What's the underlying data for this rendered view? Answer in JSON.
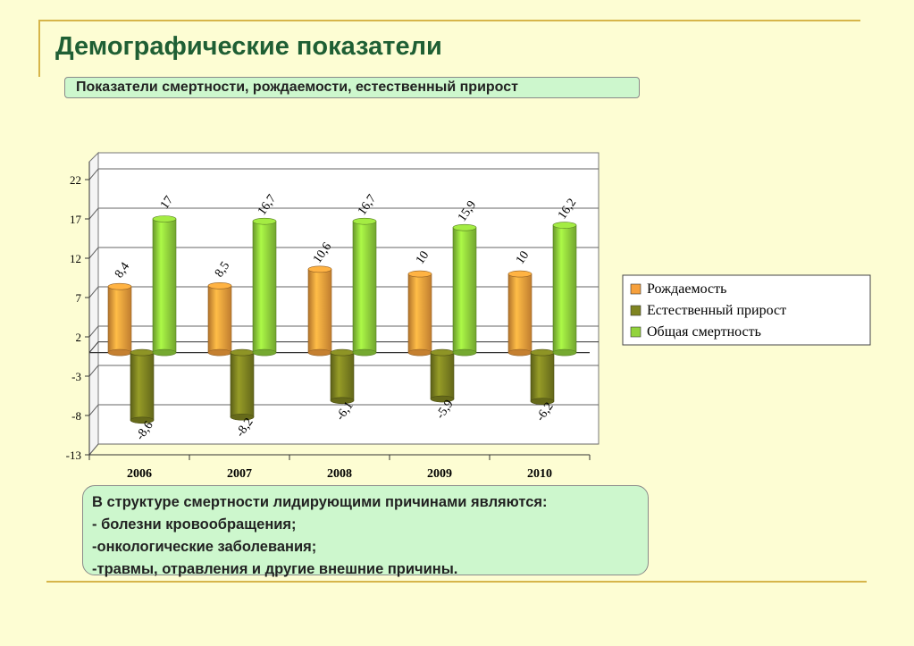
{
  "title": "Демографические показатели",
  "subtitle": "Показатели смертности, рождаемости, естественный прирост",
  "colors": {
    "background": "#fdfdd3",
    "title": "#1f5f34",
    "box": "#cdf7cd",
    "frame": "#d6b54a"
  },
  "chart_data": {
    "type": "bar",
    "categories": [
      "2006",
      "2007",
      "2008",
      "2009",
      "2010"
    ],
    "series": [
      {
        "name": "Рождаемость",
        "color": "#f6a03c",
        "values": [
          8.4,
          8.5,
          10.6,
          10,
          10
        ],
        "labels": [
          "8,4",
          "8,5",
          "10,6",
          "10",
          "10"
        ]
      },
      {
        "name": "Естественный прирост",
        "color": "#7f8421",
        "values": [
          -8.6,
          -8.2,
          -6.1,
          -5.9,
          -6.2
        ],
        "labels": [
          "-8,6",
          "-8,2",
          "-6,1",
          "-5,9",
          "-6,2"
        ]
      },
      {
        "name": "Общая смертность",
        "color": "#92d33c",
        "values": [
          17,
          16.7,
          16.7,
          15.9,
          16.2
        ],
        "labels": [
          "17",
          "16,7",
          "16,7",
          "15,9",
          "16,2"
        ]
      }
    ],
    "yticks": [
      "22",
      "17",
      "12",
      "7",
      "2",
      "-3",
      "-8",
      "-13"
    ],
    "ylim": [
      -13,
      22
    ],
    "grid": true,
    "legend_position": "right"
  },
  "notes": {
    "heading": "В структуре смертности лидирующими причинами являются:",
    "items": [
      "- болезни кровообращения;",
      "-онкологические заболевания;",
      "-травмы, отравления и другие внешние причины."
    ]
  }
}
